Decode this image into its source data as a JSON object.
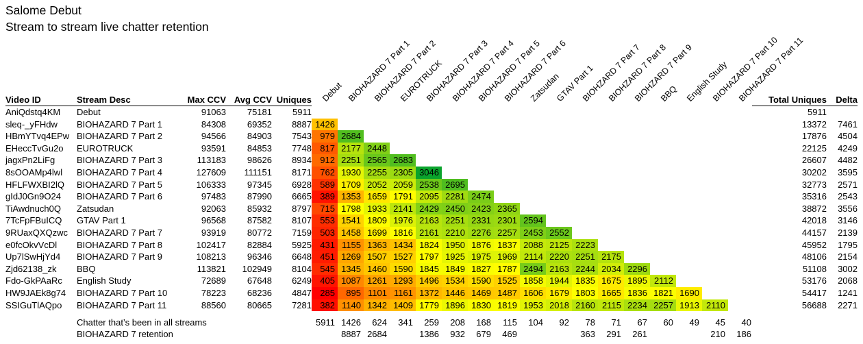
{
  "title": "Salome Debut",
  "subtitle": "Stream to stream live chatter retention",
  "chart_data": {
    "type": "heatmap",
    "title": "Salome Debut",
    "subtitle": "Stream to stream live chatter retention",
    "left_headers": [
      "Video ID",
      "Stream Desc",
      "Max CCV",
      "Avg CCV",
      "Uniques"
    ],
    "right_headers": [
      "Total Uniques",
      "Delta"
    ],
    "columns": [
      "Debut",
      "BIOHAZARD 7 Part 1",
      "BIOHAZARD 7 Part 2",
      "EUROTRUCK",
      "BIOHAZARD 7 Part 3",
      "BIOHAZARD 7 Part 4",
      "BIOHAZARD 7 Part 5",
      "BIOHAZARD 7 Part 6",
      "Zatsudan",
      "GTAV Part 1",
      "BIOHZARD 7 Part 7",
      "BIOHZARD 7 Part 8",
      "BIOHZARD 7 Part 9",
      "BBQ",
      "English Study",
      "BIOHAZARD 7 Part 10",
      "BIOHAZARD 7 Part 11"
    ],
    "rows": [
      {
        "video_id": "AniQdstq4KM",
        "stream_desc": "Debut",
        "max_ccv": 91063,
        "avg_ccv": 75181,
        "uniques": 5911,
        "cells": [],
        "total_uniques": 5911,
        "delta": null
      },
      {
        "video_id": "sleq-_yFHdw",
        "stream_desc": "BIOHAZARD 7 Part 1",
        "max_ccv": 84308,
        "avg_ccv": 69352,
        "uniques": 8887,
        "cells": [
          1426
        ],
        "total_uniques": 13372,
        "delta": 7461
      },
      {
        "video_id": "HBmYTvq4EPw",
        "stream_desc": "BIOHAZARD 7 Part 2",
        "max_ccv": 94566,
        "avg_ccv": 84903,
        "uniques": 7543,
        "cells": [
          979,
          2684
        ],
        "total_uniques": 17876,
        "delta": 4504
      },
      {
        "video_id": "EHeccTvGu2o",
        "stream_desc": "EUROTRUCK",
        "max_ccv": 93591,
        "avg_ccv": 84853,
        "uniques": 7748,
        "cells": [
          817,
          2177,
          2448
        ],
        "total_uniques": 22125,
        "delta": 4249
      },
      {
        "video_id": "jagxPn2LiFg",
        "stream_desc": "BIOHAZARD 7 Part 3",
        "max_ccv": 113183,
        "avg_ccv": 98626,
        "uniques": 8934,
        "cells": [
          912,
          2251,
          2565,
          2683
        ],
        "total_uniques": 26607,
        "delta": 4482
      },
      {
        "video_id": "8sOOAMp4lwl",
        "stream_desc": "BIOHAZARD 7 Part 4",
        "max_ccv": 127609,
        "avg_ccv": 111151,
        "uniques": 8171,
        "cells": [
          762,
          1930,
          2255,
          2305,
          3046
        ],
        "total_uniques": 30202,
        "delta": 3595
      },
      {
        "video_id": "HFLFWXBI2lQ",
        "stream_desc": "BIOHAZARD 7 Part 5",
        "max_ccv": 106333,
        "avg_ccv": 97345,
        "uniques": 6928,
        "cells": [
          589,
          1709,
          2052,
          2059,
          2538,
          2695
        ],
        "total_uniques": 32773,
        "delta": 2571
      },
      {
        "video_id": "gIdJ0Gn9O24",
        "stream_desc": "BIOHAZARD 7 Part 6",
        "max_ccv": 97483,
        "avg_ccv": 87990,
        "uniques": 6665,
        "cells": [
          389,
          1353,
          1659,
          1791,
          2095,
          2281,
          2474
        ],
        "total_uniques": 35316,
        "delta": 2543
      },
      {
        "video_id": "TiAwdnuch0Q",
        "stream_desc": "Zatsudan",
        "max_ccv": 92063,
        "avg_ccv": 85932,
        "uniques": 8797,
        "cells": [
          715,
          1798,
          1933,
          2141,
          2429,
          2450,
          2423,
          2365
        ],
        "total_uniques": 38872,
        "delta": 3556
      },
      {
        "video_id": "7TcFpFBuICQ",
        "stream_desc": "GTAV Part 1",
        "max_ccv": 96568,
        "avg_ccv": 87582,
        "uniques": 8107,
        "cells": [
          553,
          1541,
          1809,
          1976,
          2163,
          2251,
          2331,
          2301,
          2594
        ],
        "total_uniques": 42018,
        "delta": 3146
      },
      {
        "video_id": "9RUaxQXQzwc",
        "stream_desc": "BIOHAZARD 7 Part 7",
        "max_ccv": 93919,
        "avg_ccv": 80772,
        "uniques": 7159,
        "cells": [
          503,
          1458,
          1699,
          1816,
          2161,
          2210,
          2276,
          2257,
          2453,
          2552
        ],
        "total_uniques": 44157,
        "delta": 2139
      },
      {
        "video_id": "e0fcOkvVcDl",
        "stream_desc": "BIOHAZARD 7 Part 8",
        "max_ccv": 102417,
        "avg_ccv": 82884,
        "uniques": 5925,
        "cells": [
          431,
          1155,
          1363,
          1434,
          1824,
          1950,
          1876,
          1837,
          2088,
          2125,
          2223
        ],
        "total_uniques": 45952,
        "delta": 1795
      },
      {
        "video_id": "Up7lSwHjYd4",
        "stream_desc": "BIOHAZARD 7 Part 9",
        "max_ccv": 108213,
        "avg_ccv": 96346,
        "uniques": 6648,
        "cells": [
          451,
          1269,
          1507,
          1527,
          1797,
          1925,
          1975,
          1969,
          2114,
          2220,
          2251,
          2175
        ],
        "total_uniques": 48106,
        "delta": 2154
      },
      {
        "video_id": "Zjd62138_zk",
        "stream_desc": "BBQ",
        "max_ccv": 113821,
        "avg_ccv": 102949,
        "uniques": 8104,
        "cells": [
          545,
          1345,
          1460,
          1590,
          1845,
          1849,
          1827,
          1787,
          2494,
          2163,
          2244,
          2034,
          2296
        ],
        "total_uniques": 51108,
        "delta": 3002
      },
      {
        "video_id": "Fdo-GkPAaRc",
        "stream_desc": "English Study",
        "max_ccv": 72689,
        "avg_ccv": 67648,
        "uniques": 6249,
        "cells": [
          405,
          1087,
          1261,
          1293,
          1496,
          1534,
          1590,
          1525,
          1858,
          1944,
          1835,
          1675,
          1895,
          2112
        ],
        "total_uniques": 53176,
        "delta": 2068
      },
      {
        "video_id": "HW9JAEk8g74",
        "stream_desc": "BIOHAZARD 7 Part 10",
        "max_ccv": 78223,
        "avg_ccv": 68236,
        "uniques": 4847,
        "cells": [
          285,
          895,
          1101,
          1161,
          1372,
          1446,
          1469,
          1487,
          1606,
          1679,
          1803,
          1665,
          1836,
          1821,
          1690
        ],
        "total_uniques": 54417,
        "delta": 1241
      },
      {
        "video_id": "SSIGuTlAQpo",
        "stream_desc": "BIOHAZARD 7 Part 11",
        "max_ccv": 88560,
        "avg_ccv": 80665,
        "uniques": 7281,
        "cells": [
          382,
          1140,
          1342,
          1409,
          1779,
          1896,
          1830,
          1819,
          1953,
          2018,
          2160,
          2115,
          2234,
          2257,
          1913,
          2110
        ],
        "total_uniques": 56688,
        "delta": 2271
      }
    ],
    "footer": [
      {
        "label": "Chatter that’s been in all streams",
        "values": [
          5911,
          1426,
          624,
          341,
          259,
          208,
          168,
          115,
          104,
          92,
          78,
          71,
          67,
          60,
          49,
          45,
          40
        ]
      },
      {
        "label": "BIOHAZARD 7 retention",
        "values": [
          null,
          8887,
          2684,
          null,
          1386,
          932,
          679,
          469,
          null,
          null,
          363,
          291,
          261,
          null,
          null,
          210,
          186
        ]
      }
    ],
    "color_scale": {
      "min": 285,
      "mid": 1800,
      "max": 3046,
      "min_color": "#ff0000",
      "mid_color": "#ffff00",
      "max_color": "#0aa32c"
    }
  }
}
